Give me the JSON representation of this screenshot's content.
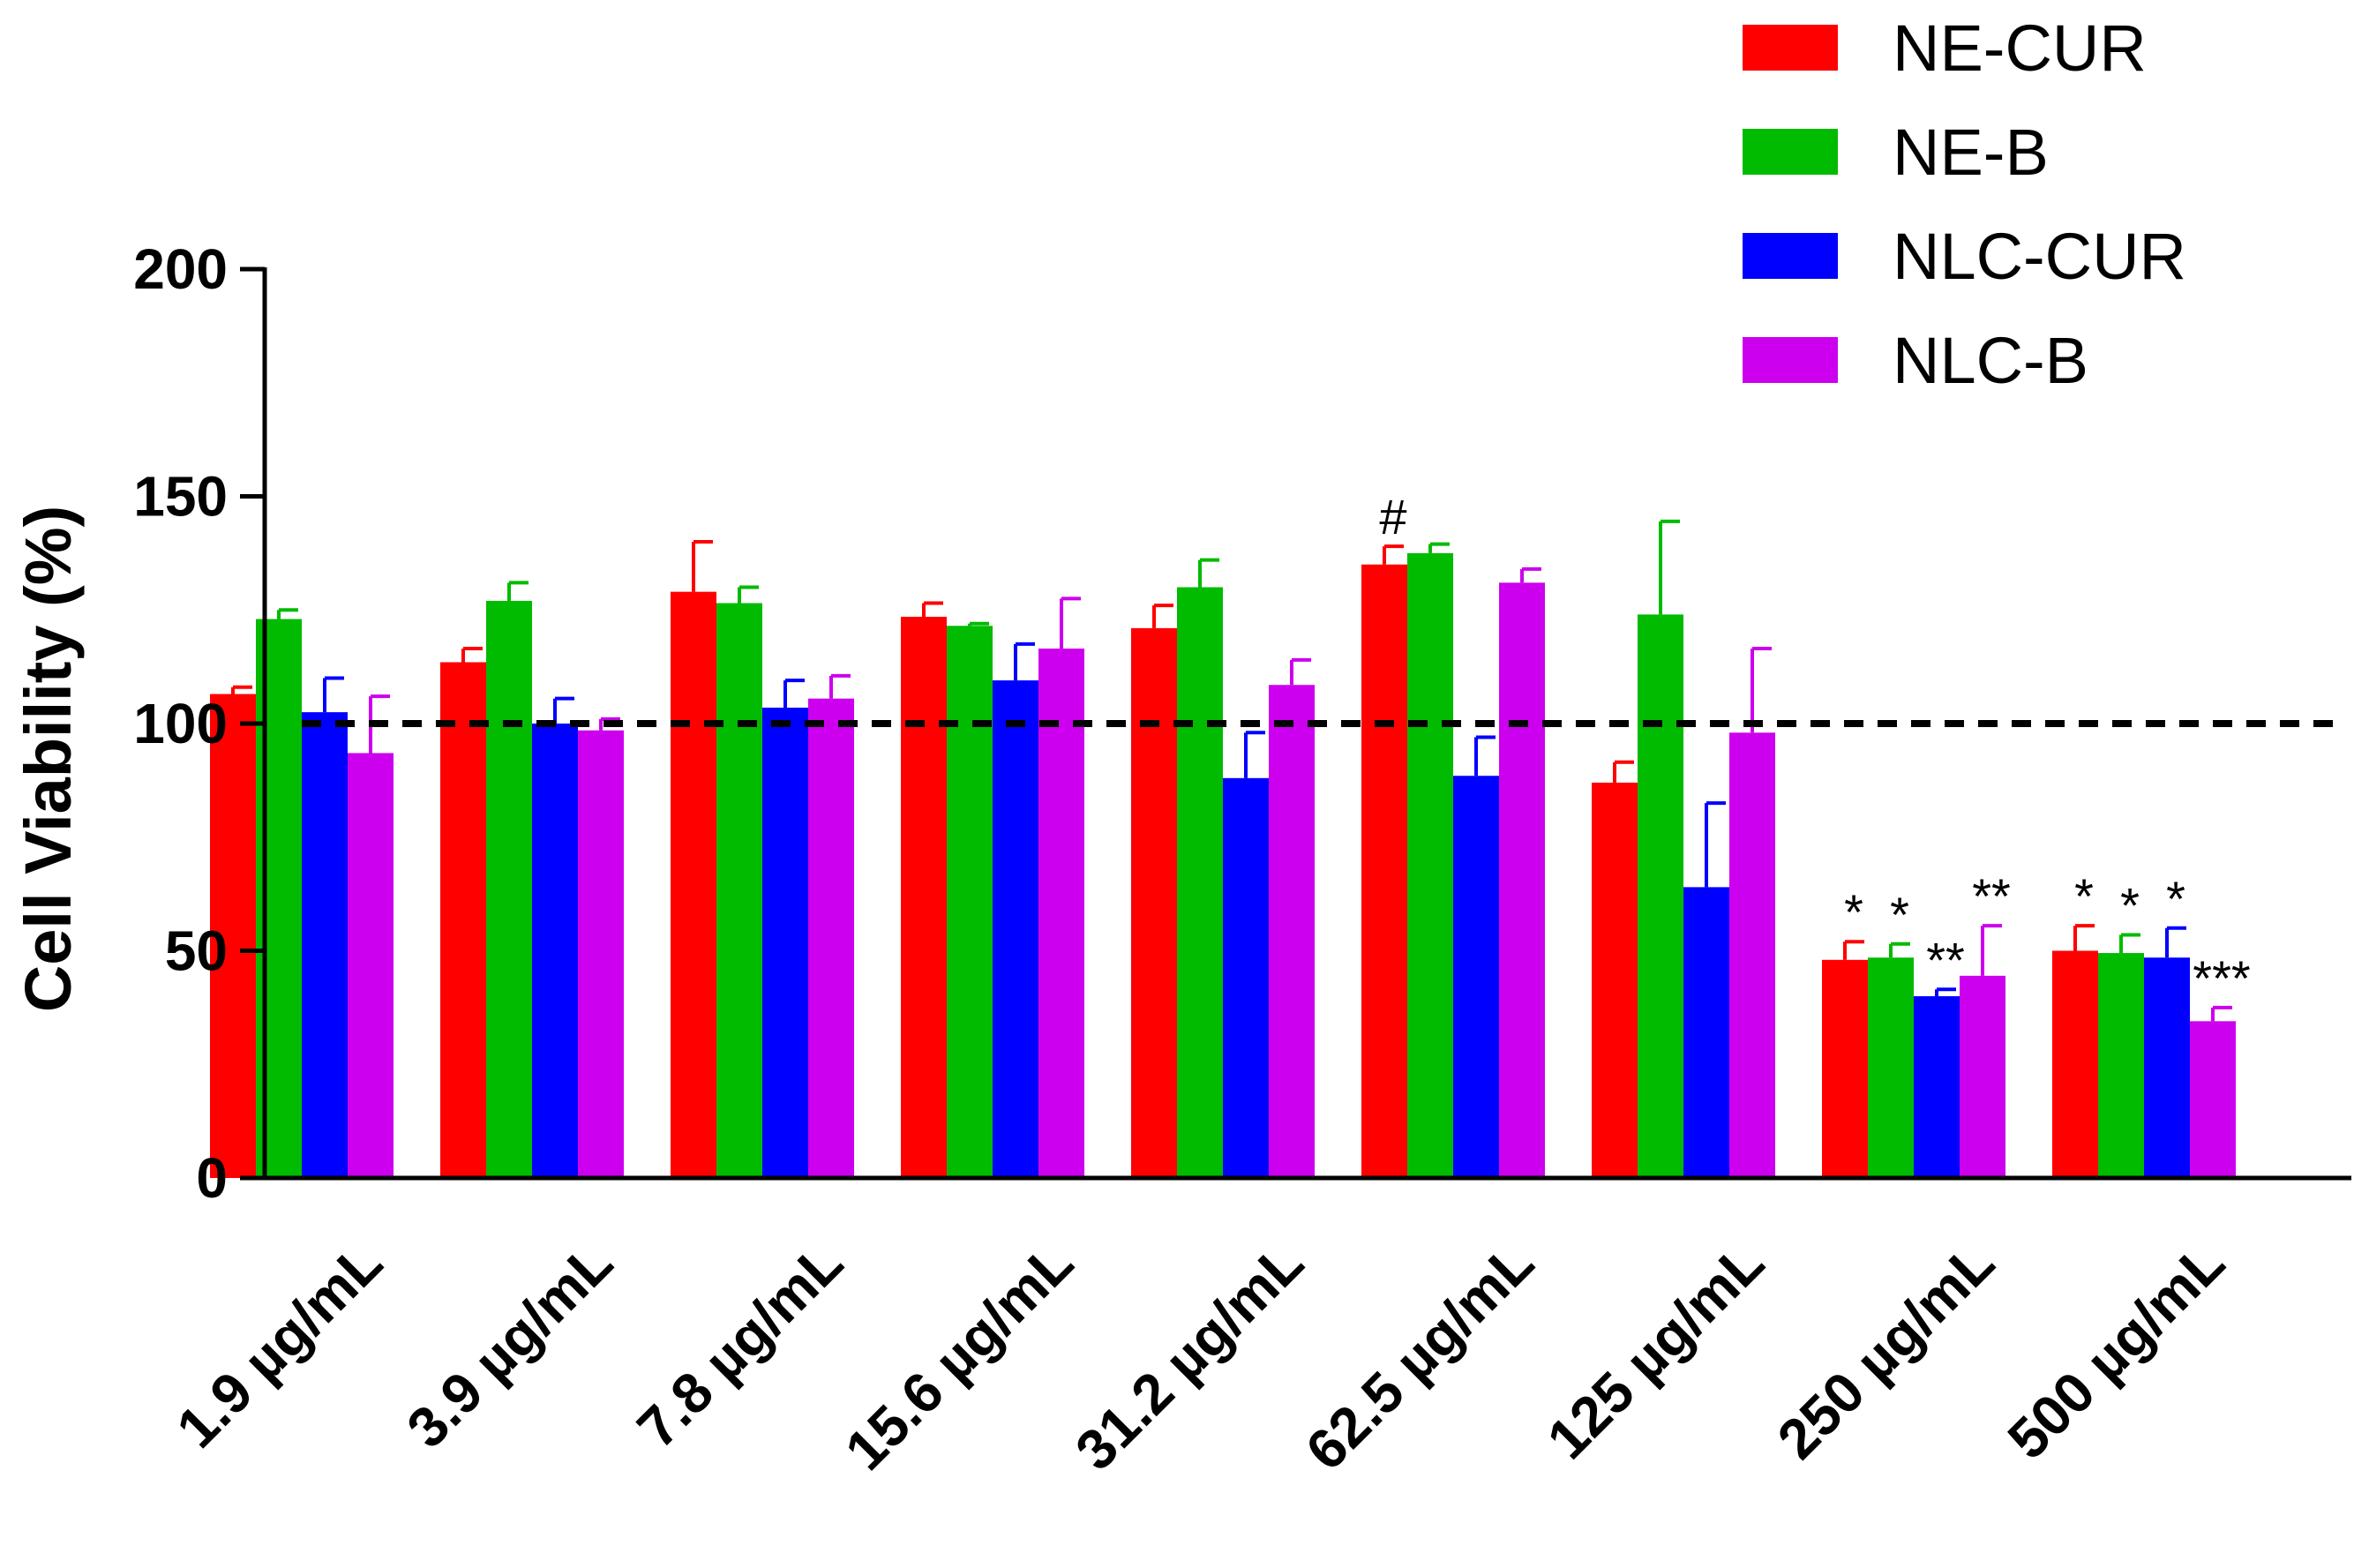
{
  "chart_data": {
    "type": "bar",
    "title": "",
    "xlabel": "",
    "ylabel": "Cell Viability (%)",
    "ylim": [
      0,
      200
    ],
    "yticks": [
      0,
      50,
      100,
      150,
      200
    ],
    "reference_line": 100,
    "categories": [
      "1.9 µg/mL",
      "3.9 µg/mL",
      "7.8 µg/mL",
      "15.6 µg/mL",
      "31.2 µg/mL",
      "62.5 µg/mL",
      "125 µg/mL",
      "250 µg/mL",
      "500 µg/mL"
    ],
    "series": [
      {
        "name": "NE-CUR",
        "color": "#ff0000",
        "values": [
          106.5,
          113.5,
          129,
          123.5,
          121,
          135,
          87,
          48,
          50
        ],
        "errors": [
          1.5,
          3,
          11,
          3,
          5,
          4,
          4.5,
          4,
          5.5
        ]
      },
      {
        "name": "NE-B",
        "color": "#00bb00",
        "values": [
          123,
          127,
          126.5,
          121.5,
          130,
          137.5,
          124,
          48.5,
          49.5
        ],
        "errors": [
          2,
          4,
          3.5,
          0.5,
          6,
          2,
          20.5,
          3,
          4
        ]
      },
      {
        "name": "NLC-CUR",
        "color": "#0000ff",
        "values": [
          102.5,
          100,
          103.5,
          109.5,
          88,
          88.5,
          64,
          40,
          48.5
        ],
        "errors": [
          7.5,
          5.5,
          6,
          8,
          10,
          8.5,
          18.5,
          1.5,
          6.5
        ]
      },
      {
        "name": "NLC-B",
        "color": "#cc00ee",
        "values": [
          93.5,
          98.5,
          105.5,
          116.5,
          108.5,
          131,
          98,
          44.5,
          34.5
        ],
        "errors": [
          12.5,
          2.5,
          5,
          11,
          5.5,
          3,
          18.5,
          11,
          3
        ]
      }
    ],
    "annotations": [
      {
        "category": 5,
        "series": 0,
        "text": "#"
      },
      {
        "category": 7,
        "series": 0,
        "text": "*"
      },
      {
        "category": 7,
        "series": 1,
        "text": "*"
      },
      {
        "category": 7,
        "series": 2,
        "text": "**"
      },
      {
        "category": 7,
        "series": 3,
        "text": "**"
      },
      {
        "category": 8,
        "series": 0,
        "text": "*"
      },
      {
        "category": 8,
        "series": 1,
        "text": "*"
      },
      {
        "category": 8,
        "series": 2,
        "text": "*"
      },
      {
        "category": 8,
        "series": 3,
        "text": "***"
      }
    ],
    "legend_position": "top-right"
  }
}
